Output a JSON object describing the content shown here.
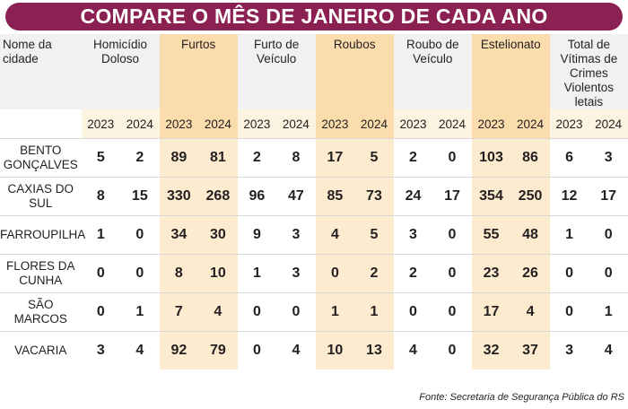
{
  "title": "COMPARE O MÊS DE JANEIRO DE CADA ANO",
  "source": "Fonte: Secretaria de Segurança Pública do RS",
  "colors": {
    "title_bg": "#8a2152",
    "highlight_column": "#fbdcac",
    "year_row": "#fdf3e1"
  },
  "chart_data": {
    "type": "table",
    "header_city": "Nome da cidade",
    "categories": [
      "Homicídio Doloso",
      "Furtos",
      "Furto de Veículo",
      "Roubos",
      "Roubo de Veículo",
      "Estelionato",
      "Total de Vítimas de Crimes Violentos letais"
    ],
    "years": [
      "2023",
      "2024"
    ],
    "rows": [
      {
        "city": "BENTO GONÇALVES",
        "values": [
          5,
          2,
          89,
          81,
          2,
          8,
          17,
          5,
          2,
          0,
          103,
          86,
          6,
          3
        ]
      },
      {
        "city": "CAXIAS DO SUL",
        "values": [
          8,
          15,
          330,
          268,
          96,
          47,
          85,
          73,
          24,
          17,
          354,
          250,
          12,
          17
        ]
      },
      {
        "city": "FARROUPILHA",
        "values": [
          1,
          0,
          34,
          30,
          9,
          3,
          4,
          5,
          3,
          0,
          55,
          48,
          1,
          0
        ]
      },
      {
        "city": "FLORES DA CUNHA",
        "values": [
          0,
          0,
          8,
          10,
          1,
          3,
          0,
          2,
          2,
          0,
          23,
          26,
          0,
          0
        ]
      },
      {
        "city": "SÃO MARCOS",
        "values": [
          0,
          1,
          7,
          4,
          0,
          0,
          1,
          1,
          0,
          0,
          17,
          4,
          0,
          1
        ]
      },
      {
        "city": "VACARIA",
        "values": [
          3,
          4,
          92,
          79,
          0,
          4,
          10,
          13,
          4,
          0,
          32,
          37,
          3,
          4
        ]
      }
    ]
  }
}
